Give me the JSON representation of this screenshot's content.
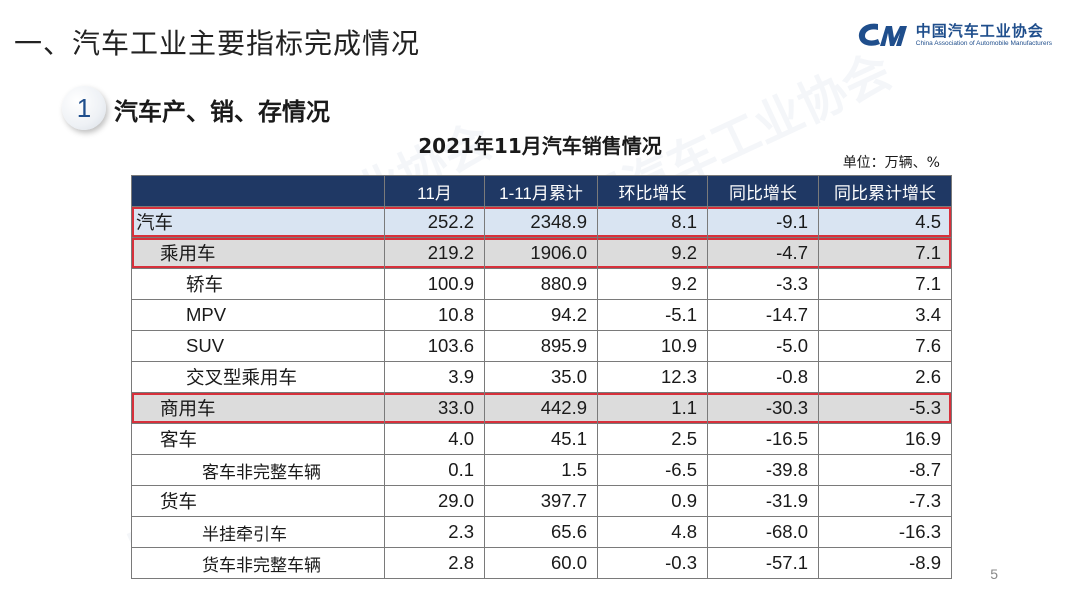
{
  "header": {
    "title": "一、汽车工业主要指标完成情况",
    "logo": {
      "name_cn": "中国汽车工业协会",
      "name_en": "China Association of Automobile Manufacturers",
      "icon": "caam-logo-icon",
      "color": "#1f4e8c"
    }
  },
  "section": {
    "number": "1",
    "title": "汽车产、销、存情况"
  },
  "table": {
    "title": "2021年11月汽车销售情况",
    "unit": "单位：万辆、%",
    "columns": [
      "",
      "11月",
      "1-11月累计",
      "环比增长",
      "同比增长",
      "同比累计增长"
    ],
    "rows": [
      {
        "label": "汽车",
        "level": 0,
        "highlight": true,
        "values": [
          "252.2",
          "2348.9",
          "8.1",
          "-9.1",
          "4.5"
        ]
      },
      {
        "label": "乘用车",
        "level": 1,
        "highlight": true,
        "values": [
          "219.2",
          "1906.0",
          "9.2",
          "-4.7",
          "7.1"
        ]
      },
      {
        "label": "轿车",
        "level": 2,
        "highlight": false,
        "values": [
          "100.9",
          "880.9",
          "9.2",
          "-3.3",
          "7.1"
        ]
      },
      {
        "label": "MPV",
        "level": 2,
        "highlight": false,
        "values": [
          "10.8",
          "94.2",
          "-5.1",
          "-14.7",
          "3.4"
        ]
      },
      {
        "label": "SUV",
        "level": 2,
        "highlight": false,
        "values": [
          "103.6",
          "895.9",
          "10.9",
          "-5.0",
          "7.6"
        ]
      },
      {
        "label": "交叉型乘用车",
        "level": 2,
        "highlight": false,
        "values": [
          "3.9",
          "35.0",
          "12.3",
          "-0.8",
          "2.6"
        ]
      },
      {
        "label": "商用车",
        "level": 1,
        "highlight": true,
        "values": [
          "33.0",
          "442.9",
          "1.1",
          "-30.3",
          "-5.3"
        ]
      },
      {
        "label": "客车",
        "level": 1.5,
        "highlight": false,
        "values": [
          "4.0",
          "45.1",
          "2.5",
          "-16.5",
          "16.9"
        ]
      },
      {
        "label": "客车非完整车辆",
        "level": 3,
        "highlight": false,
        "values": [
          "0.1",
          "1.5",
          "-6.5",
          "-39.8",
          "-8.7"
        ]
      },
      {
        "label": "货车",
        "level": 1.5,
        "highlight": false,
        "values": [
          "29.0",
          "397.7",
          "0.9",
          "-31.9",
          "-7.3"
        ]
      },
      {
        "label": "半挂牵引车",
        "level": 3,
        "highlight": false,
        "values": [
          "2.3",
          "65.6",
          "4.8",
          "-68.0",
          "-16.3"
        ]
      },
      {
        "label": "货车非完整车辆",
        "level": 3,
        "highlight": false,
        "values": [
          "2.8",
          "60.0",
          "-0.3",
          "-57.1",
          "-8.9"
        ]
      }
    ]
  },
  "footer": {
    "page_number": "5"
  },
  "colors": {
    "header_bg": "#1f3864",
    "highlight_border": "#d7303b",
    "row_total_bg": "#d9e4f2",
    "row_group_bg": "#dcdcdc"
  }
}
